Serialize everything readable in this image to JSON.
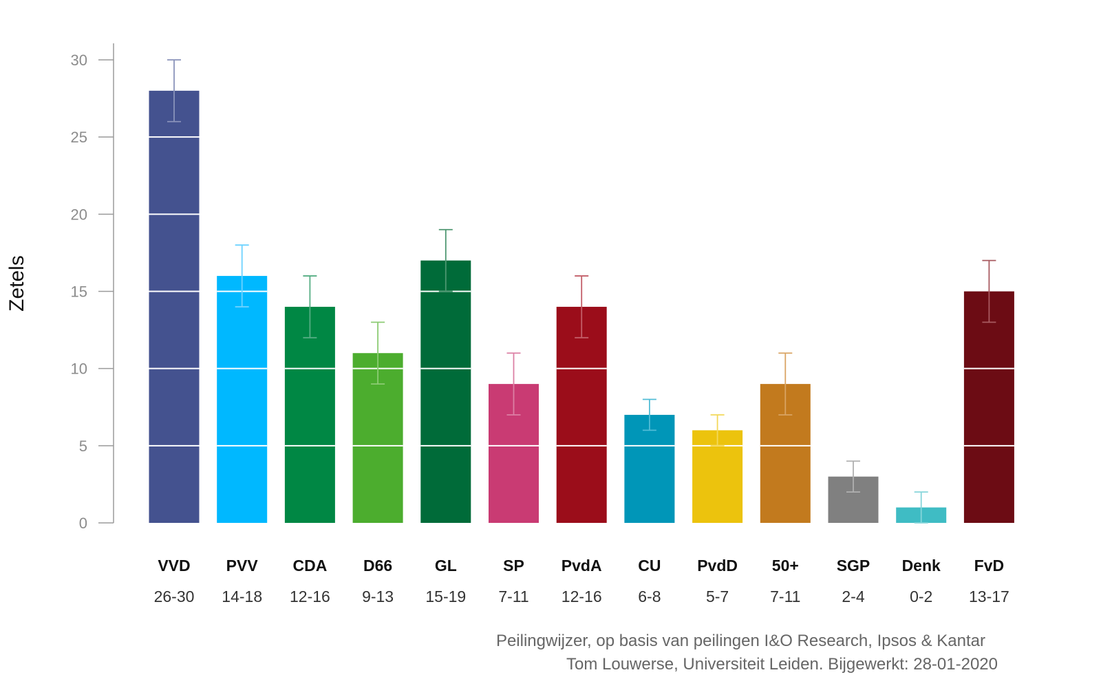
{
  "chart_data": {
    "type": "bar",
    "ylabel": "Zetels",
    "ylim": [
      0,
      30
    ],
    "yticks": [
      0,
      5,
      10,
      15,
      20,
      25,
      30
    ],
    "grid": false,
    "categories": [
      "VVD",
      "PVV",
      "CDA",
      "D66",
      "GL",
      "SP",
      "PvdA",
      "CU",
      "PvdD",
      "50+",
      "SGP",
      "Denk",
      "FvD"
    ],
    "ranges": [
      "26-30",
      "14-18",
      "12-16",
      "9-13",
      "15-19",
      "7-11",
      "12-16",
      "6-8",
      "5-7",
      "7-11",
      "2-4",
      "0-2",
      "13-17"
    ],
    "values": [
      28,
      16,
      14,
      11,
      17,
      9,
      14,
      7,
      6,
      9,
      3,
      1,
      15
    ],
    "low": [
      26,
      14,
      12,
      9,
      15,
      7,
      12,
      6,
      5,
      7,
      2,
      0,
      13
    ],
    "high": [
      30,
      18,
      16,
      13,
      19,
      11,
      16,
      8,
      7,
      11,
      4,
      2,
      17
    ],
    "colors": [
      "#44528f",
      "#00b8ff",
      "#008744",
      "#4cad2e",
      "#006b39",
      "#c93b73",
      "#9b0d1a",
      "#0096b8",
      "#ecc30d",
      "#c27a1e",
      "#808080",
      "#3fbcc4",
      "#6c0c14"
    ],
    "error_colors": [
      "#8a93ba",
      "#6dd2ff",
      "#55ad83",
      "#8ccb73",
      "#4d9670",
      "#dc7fa4",
      "#c35e68",
      "#52bcd6",
      "#f3d85a",
      "#d9a463",
      "#b0b0b0",
      "#85d5da",
      "#a85a60"
    ]
  },
  "source": {
    "line1": "Peilingwijzer, op basis van peilingen I&O Research, Ipsos & Kantar",
    "line2": "Tom Louwerse, Universiteit Leiden. Bijgewerkt: 28-01-2020"
  }
}
